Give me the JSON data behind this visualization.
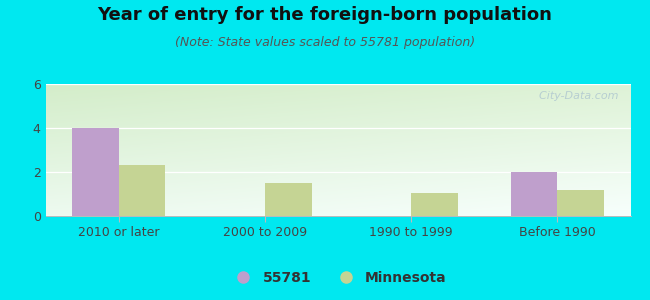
{
  "title": "Year of entry for the foreign-born population",
  "subtitle": "(Note: State values scaled to 55781 population)",
  "categories": [
    "2010 or later",
    "2000 to 2009",
    "1990 to 1999",
    "Before 1990"
  ],
  "series_55781": [
    4.0,
    0.0,
    0.0,
    2.0
  ],
  "series_minnesota": [
    2.3,
    1.5,
    1.05,
    1.2
  ],
  "color_55781": "#bf9fcc",
  "color_minnesota": "#c5d494",
  "background_outer": "#00e8f0",
  "ylim": [
    0,
    6
  ],
  "yticks": [
    0,
    2,
    4,
    6
  ],
  "bar_width": 0.32,
  "watermark": "  City-Data.com",
  "legend_label_55781": "55781",
  "legend_label_minnesota": "Minnesota",
  "title_fontsize": 13,
  "subtitle_fontsize": 9,
  "tick_fontsize": 9,
  "legend_fontsize": 10
}
